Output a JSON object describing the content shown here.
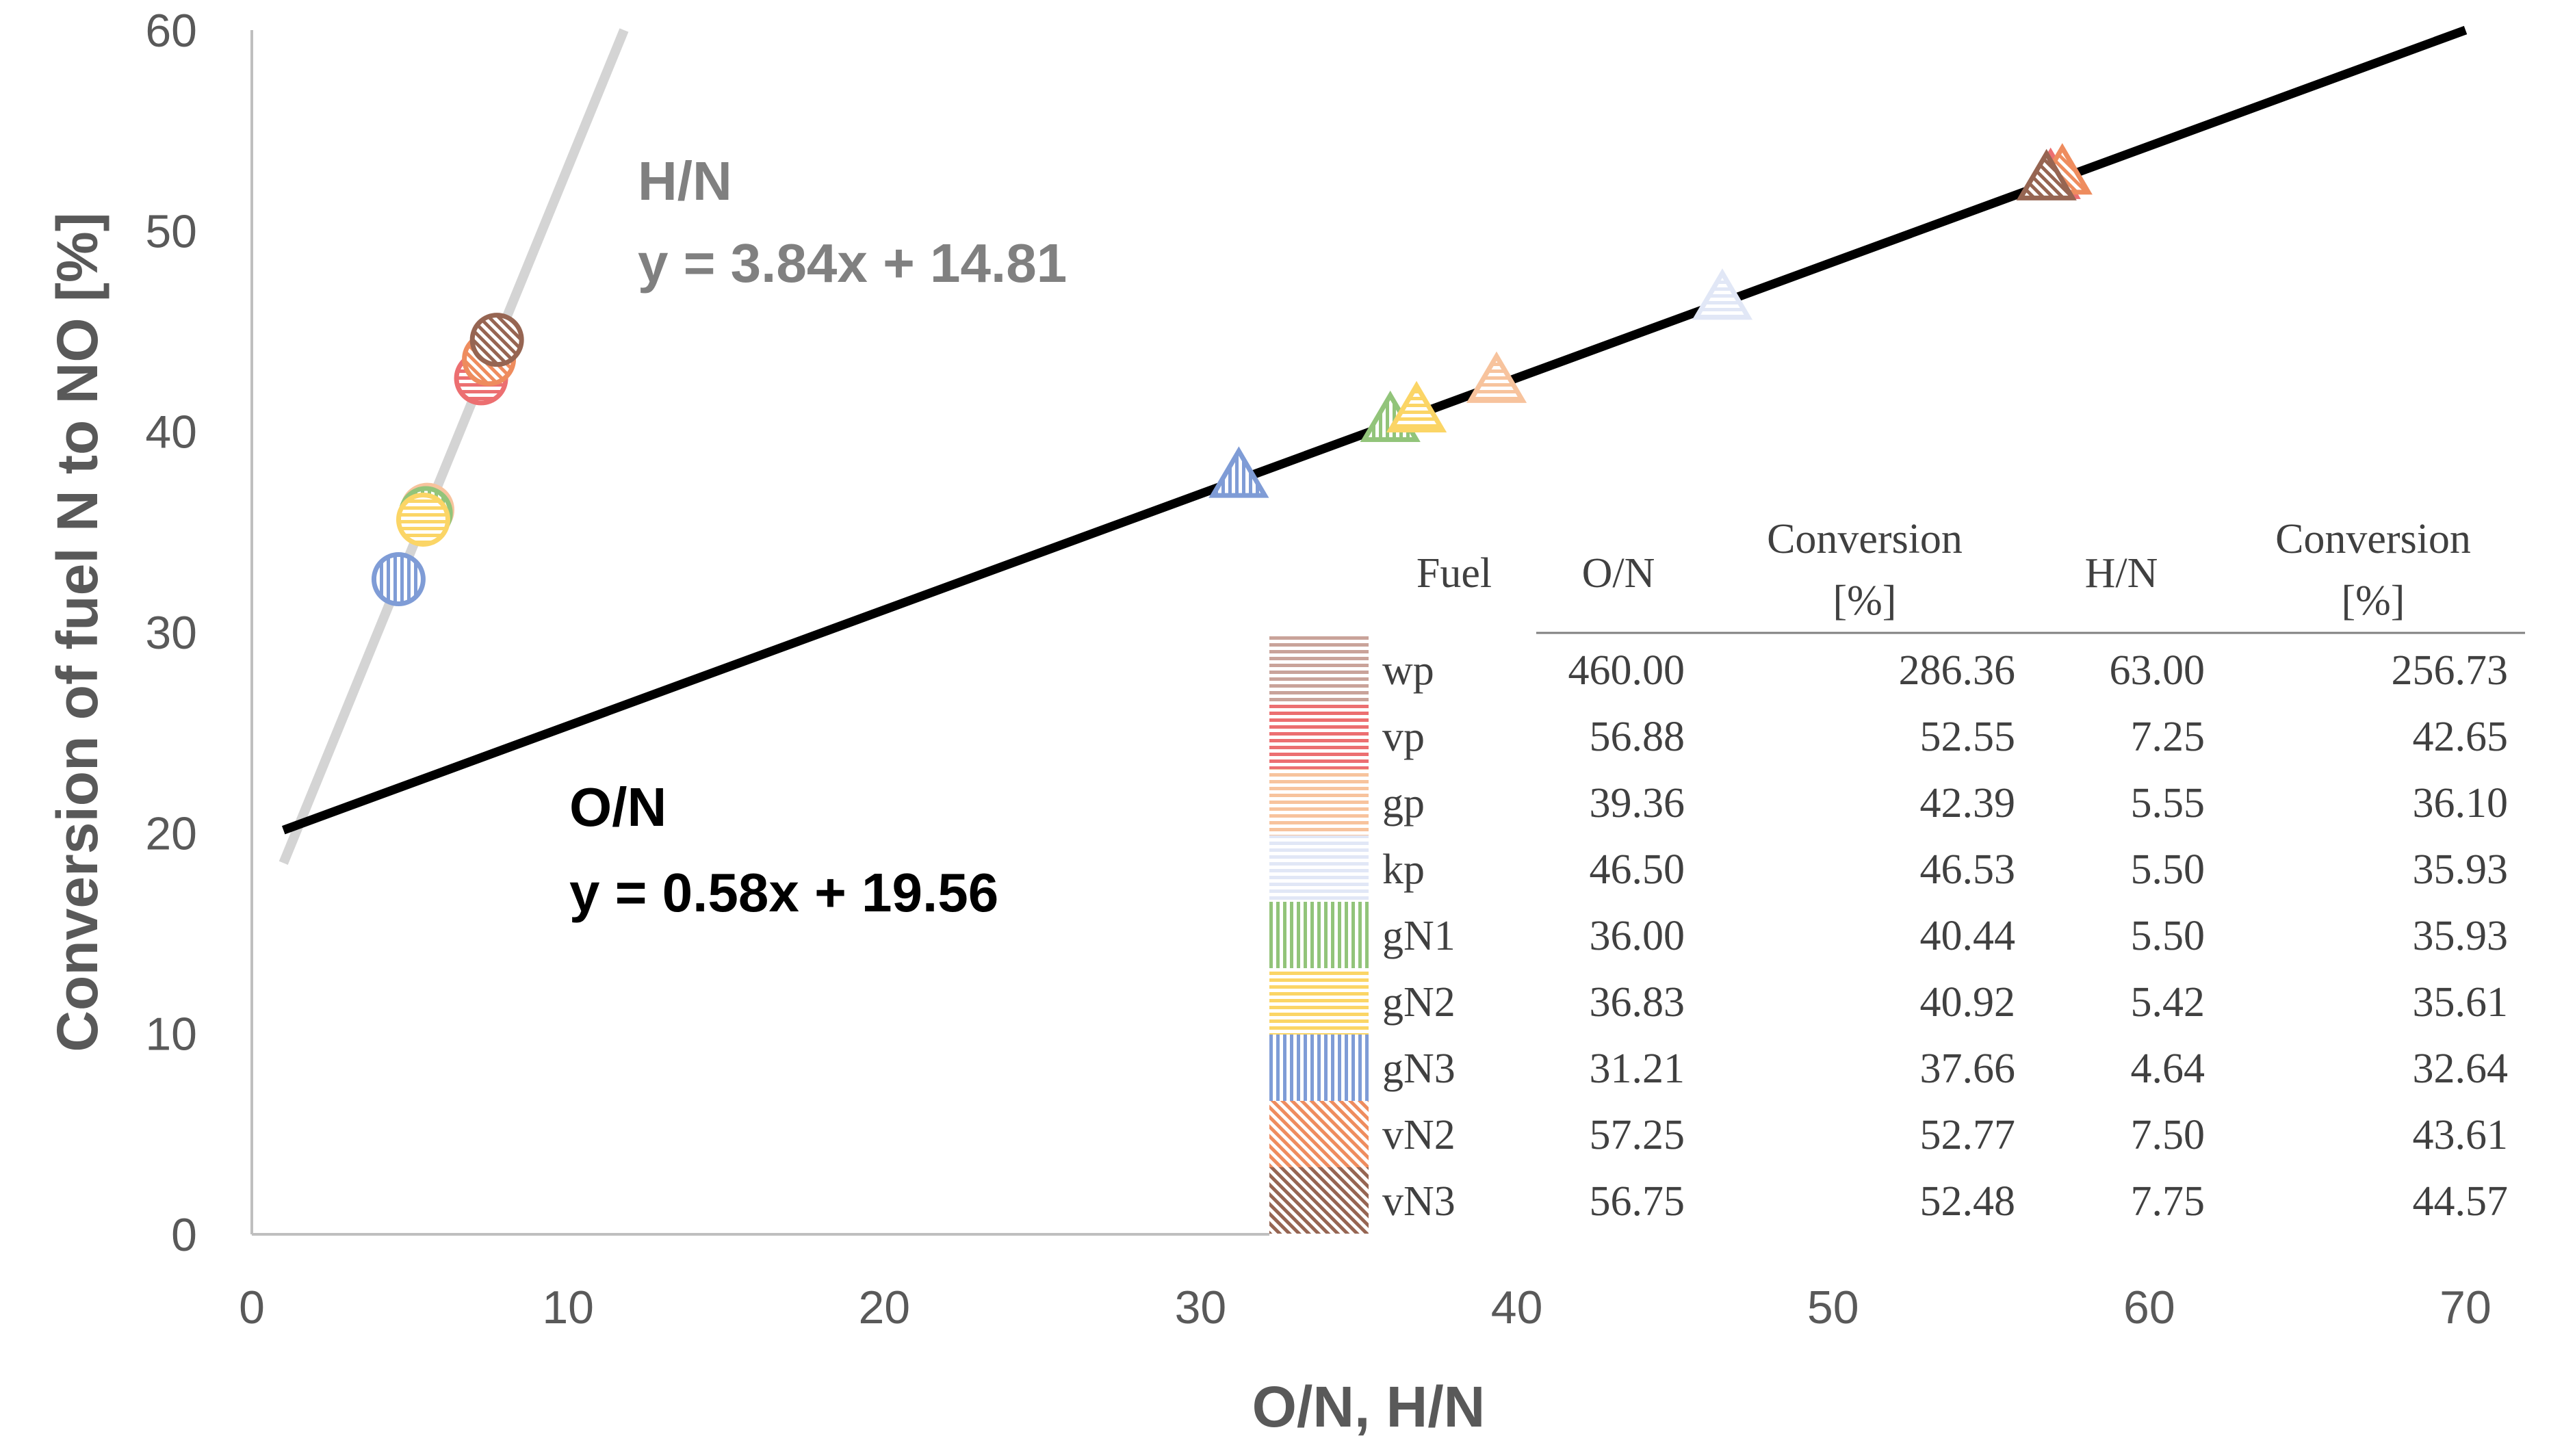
{
  "chart_data": {
    "type": "scatter",
    "title": "",
    "xlabel": "O/N, H/N",
    "ylabel": "Conversion of fuel N to NO [%]",
    "xlim": [
      0,
      70
    ],
    "ylim": [
      0,
      60
    ],
    "x_ticks": [
      0,
      10,
      20,
      30,
      40,
      50,
      60,
      70
    ],
    "y_ticks": [
      0,
      10,
      20,
      30,
      40,
      50,
      60
    ],
    "grid": false,
    "series": [
      {
        "name": "H/N",
        "marker": "circle",
        "points": [
          {
            "fuel": "vp",
            "x": 7.25,
            "y": 42.65
          },
          {
            "fuel": "gp",
            "x": 5.55,
            "y": 36.1
          },
          {
            "fuel": "gN1",
            "x": 5.5,
            "y": 35.93
          },
          {
            "fuel": "gN2",
            "x": 5.42,
            "y": 35.61
          },
          {
            "fuel": "gN3",
            "x": 4.64,
            "y": 32.64
          },
          {
            "fuel": "vN2",
            "x": 7.5,
            "y": 43.61
          },
          {
            "fuel": "vN3",
            "x": 7.75,
            "y": 44.57
          }
        ]
      },
      {
        "name": "O/N",
        "marker": "triangle",
        "points": [
          {
            "fuel": "vp",
            "x": 56.88,
            "y": 52.55
          },
          {
            "fuel": "gp",
            "x": 39.36,
            "y": 42.39
          },
          {
            "fuel": "kp",
            "x": 46.5,
            "y": 46.53
          },
          {
            "fuel": "gN1",
            "x": 36.0,
            "y": 40.44
          },
          {
            "fuel": "gN2",
            "x": 36.83,
            "y": 40.92
          },
          {
            "fuel": "gN3",
            "x": 31.21,
            "y": 37.66
          },
          {
            "fuel": "vN2",
            "x": 57.25,
            "y": 52.77
          },
          {
            "fuel": "vN3",
            "x": 56.75,
            "y": 52.48
          }
        ]
      }
    ],
    "trendlines": [
      {
        "name": "H/N",
        "label": "H/N",
        "equation": "y = 3.84x + 14.81",
        "slope": 3.84,
        "intercept": 14.81,
        "x_range": [
          1,
          11.77
        ],
        "color": "#d4d4d4"
      },
      {
        "name": "O/N",
        "label": "O/N",
        "equation": "y = 0.58x + 19.56",
        "slope": 0.58,
        "intercept": 19.56,
        "x_range": [
          1,
          70
        ],
        "color": "#000000"
      }
    ],
    "fuel_colors": {
      "wp": "#c9a39a",
      "vp": "#ec6f71",
      "gp": "#f7c39d",
      "kp": "#e1e7f6",
      "gN1": "#92c47a",
      "gN2": "#fbd566",
      "gN3": "#7f9cd6",
      "vN2": "#ee8c5e",
      "vN3": "#966552"
    },
    "table": {
      "columns": [
        "Fuel",
        "O/N",
        "Conversion [%]",
        "H/N",
        "Conversion [%]"
      ],
      "rows": [
        {
          "fuel": "wp",
          "on": "460.00",
          "conv_on": "286.36",
          "hn": "63.00",
          "conv_hn": "256.73"
        },
        {
          "fuel": "vp",
          "on": "56.88",
          "conv_on": "52.55",
          "hn": "7.25",
          "conv_hn": "42.65"
        },
        {
          "fuel": "gp",
          "on": "39.36",
          "conv_on": "42.39",
          "hn": "5.55",
          "conv_hn": "36.10"
        },
        {
          "fuel": "kp",
          "on": "46.50",
          "conv_on": "46.53",
          "hn": "5.50",
          "conv_hn": "35.93"
        },
        {
          "fuel": "gN1",
          "on": "36.00",
          "conv_on": "40.44",
          "hn": "5.50",
          "conv_hn": "35.93"
        },
        {
          "fuel": "gN2",
          "on": "36.83",
          "conv_on": "40.92",
          "hn": "5.42",
          "conv_hn": "35.61"
        },
        {
          "fuel": "gN3",
          "on": "31.21",
          "conv_on": "37.66",
          "hn": "4.64",
          "conv_hn": "32.64"
        },
        {
          "fuel": "vN2",
          "on": "57.25",
          "conv_on": "52.77",
          "hn": "7.50",
          "conv_hn": "43.61"
        },
        {
          "fuel": "vN3",
          "on": "56.75",
          "conv_on": "52.48",
          "hn": "7.75",
          "conv_hn": "44.57"
        }
      ]
    }
  }
}
